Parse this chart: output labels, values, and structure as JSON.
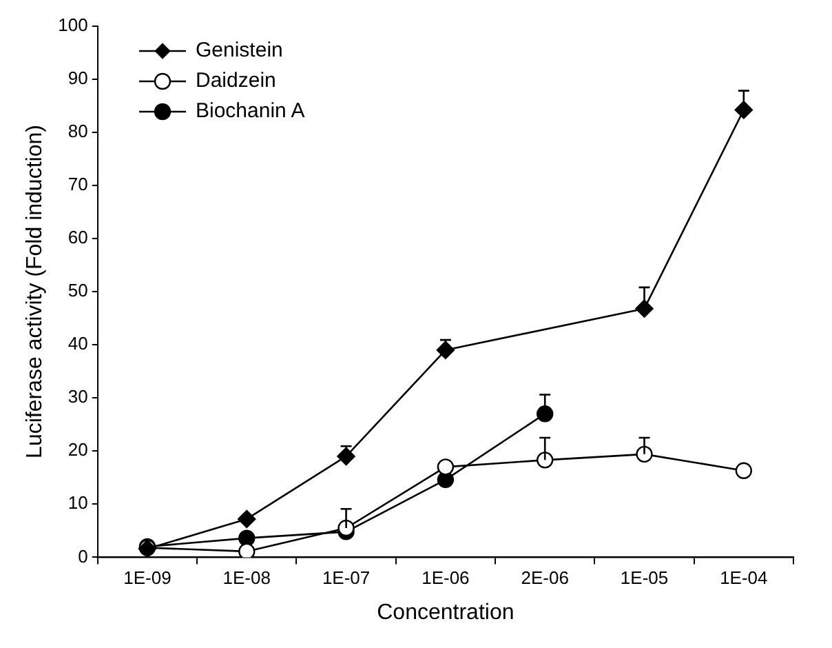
{
  "chart_data": {
    "type": "line",
    "xlabel": "Concentration",
    "ylabel": "Luciferase activity (Fold induction)",
    "categories": [
      "1E-09",
      "1E-08",
      "1E-07",
      "1E-06",
      "2E-06",
      "1E-05",
      "1E-04"
    ],
    "ylim": [
      0,
      100
    ],
    "yticks": [
      0,
      10,
      20,
      30,
      40,
      50,
      60,
      70,
      80,
      90,
      100
    ],
    "grid": false,
    "legend": "top left",
    "line_style": "solid",
    "series": [
      {
        "name": "Genistein",
        "color": "#000000",
        "marker": "diamond",
        "values": [
          1.6,
          7.2,
          19.0,
          39.0,
          null,
          46.8,
          84.2
        ],
        "errors": [
          null,
          null,
          [
            19.0,
            20.9
          ],
          [
            39.0,
            40.9
          ],
          null,
          [
            46.8,
            50.8
          ],
          [
            84.2,
            87.8
          ]
        ]
      },
      {
        "name": "Daidzein",
        "color": "#000000",
        "marker": "circle",
        "values": [
          1.8,
          1.1,
          5.5,
          17.0,
          18.3,
          19.4,
          16.3
        ],
        "errors": [
          null,
          null,
          [
            5.5,
            9.1
          ],
          null,
          [
            18.3,
            22.5
          ],
          [
            19.4,
            22.5
          ],
          null
        ]
      },
      {
        "name": "Biochanin A",
        "color": "#000000",
        "marker": "circle",
        "values": [
          2.0,
          3.6,
          4.8,
          14.6,
          27.0,
          null,
          null
        ],
        "errors": [
          null,
          null,
          null,
          null,
          [
            27.0,
            30.6
          ],
          null,
          null
        ]
      }
    ]
  }
}
